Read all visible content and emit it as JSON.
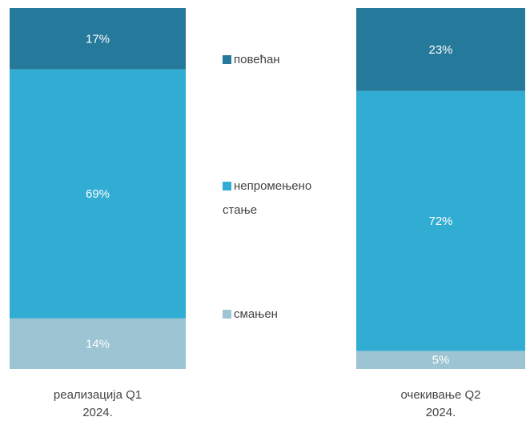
{
  "chart_data": {
    "type": "stacked_bar",
    "categories": [
      "реализација Q1 2024.",
      "очекивање Q2 2024."
    ],
    "series": [
      {
        "name": "смањен",
        "color": "#9cc4d3",
        "values": [
          14,
          5
        ],
        "value_labels": [
          "14%",
          "5%"
        ]
      },
      {
        "name": "непромењено стање",
        "color": "#31acd2",
        "values": [
          69,
          72
        ],
        "value_labels": [
          "69%",
          "72%"
        ]
      },
      {
        "name": "повећан",
        "color": "#25799a",
        "values": [
          17,
          23
        ],
        "value_labels": [
          "17%",
          "23%"
        ]
      }
    ],
    "legend": "center"
  }
}
